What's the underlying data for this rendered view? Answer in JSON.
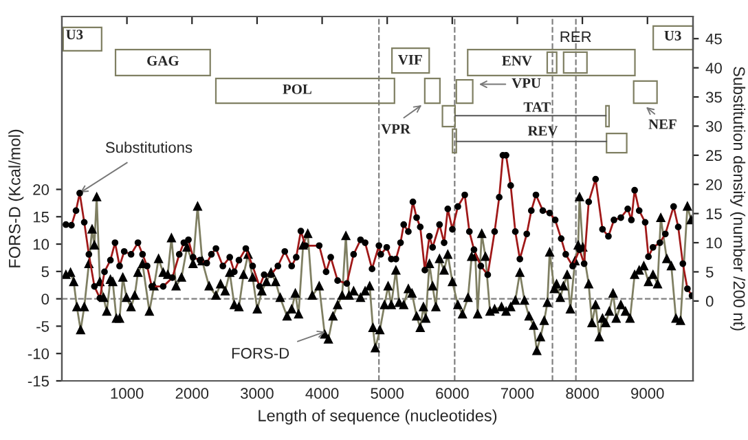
{
  "chart_data": {
    "type": "line",
    "xlabel": "Length of sequence (nucleotides)",
    "ylabel": "FORS-D (Kcal/mol)",
    "y2label": "Substitution density (number /200 nt)",
    "xlim": [
      0,
      9700
    ],
    "xticks": [
      1000,
      2000,
      3000,
      4000,
      5000,
      6000,
      7000,
      8000,
      9000
    ],
    "ylim": [
      -15,
      51.6
    ],
    "yticks": [
      -15,
      -10,
      -5,
      0,
      5,
      10,
      15,
      20
    ],
    "y2lim": [
      -13.7,
      48.8
    ],
    "y2ticks": [
      0,
      5,
      10,
      15,
      20,
      25,
      30,
      35,
      40,
      45
    ],
    "grid": false,
    "legend": false,
    "series": [
      {
        "color": "#7f7f62",
        "marker": "triangle",
        "line_style": "solid",
        "x": [
          62,
          133,
          182,
          231,
          288,
          344,
          415,
          464,
          500,
          535,
          584,
          640,
          690,
          746,
          782,
          838,
          887,
          937,
          993,
          1063,
          1120,
          1169,
          1240,
          1345,
          1416,
          1486,
          1557,
          1627,
          1684,
          1755,
          1839,
          1924,
          2016,
          2086,
          2157,
          2263,
          2368,
          2439,
          2510,
          2580,
          2650,
          2721,
          2792,
          2862,
          2932,
          3003,
          3074,
          3144,
          3214,
          3285,
          3355,
          3461,
          3532,
          3588,
          3638,
          3708,
          3779,
          3849,
          3955,
          4040,
          4096,
          4167,
          4238,
          4308,
          4365,
          4414,
          4484,
          4590,
          4661,
          4731,
          4781,
          4817,
          4887,
          4958,
          5014,
          5063,
          5134,
          5183,
          5254,
          5325,
          5381,
          5452,
          5508,
          5557,
          5593,
          5649,
          5698,
          5748,
          5804,
          5875,
          5931,
          6002,
          6086,
          6157,
          6242,
          6298,
          6355,
          6390,
          6453,
          6510,
          6580,
          6651,
          6757,
          6827,
          6898,
          6969,
          7039,
          7110,
          7180,
          7251,
          7300,
          7356,
          7413,
          7462,
          7497,
          7568,
          7603,
          7660,
          7709,
          7766,
          7815,
          7886,
          7935,
          7956,
          8006,
          8097,
          8147,
          8203,
          8259,
          8309,
          8358,
          8414,
          8471,
          8520,
          8591,
          8662,
          8732,
          8803,
          8873,
          8944,
          9015,
          9085,
          9156,
          9205,
          9297,
          9367,
          9438,
          9508,
          9614,
          9671
        ],
        "values": [
          4.4,
          4.8,
          3.1,
          -1.5,
          -5.7,
          -1.5,
          6.4,
          12.7,
          9.8,
          18.6,
          3.1,
          0.2,
          -2.3,
          3.5,
          3.1,
          -3.6,
          -3.6,
          3.9,
          0.2,
          -1.5,
          0.6,
          4.8,
          6.4,
          -2.3,
          2.3,
          7.3,
          4.8,
          4.4,
          11.1,
          2.3,
          3.9,
          9.4,
          6.4,
          16.9,
          6.9,
          2.3,
          0.6,
          2.7,
          1.4,
          4.8,
          -1.1,
          -1.5,
          4.4,
          8.1,
          3.9,
          -1.9,
          1.4,
          3.1,
          4.8,
          3.1,
          0.2,
          -3.2,
          -1.9,
          1.0,
          -2.8,
          9.8,
          11.9,
          0.6,
          2.3,
          -6.5,
          -7.4,
          -3.2,
          -1.1,
          0.6,
          11.5,
          0.6,
          1.4,
          0.2,
          1.4,
          2.3,
          -5.3,
          -9.0,
          -5.7,
          -1.1,
          2.3,
          -1.1,
          5.2,
          -0.7,
          -1.1,
          1.8,
          1.0,
          -3.2,
          -5.3,
          -1.5,
          -3.6,
          6.4,
          2.3,
          -1.5,
          7.3,
          5.2,
          8.1,
          3.1,
          -1.1,
          -2.8,
          0.2,
          7.7,
          7.7,
          -2.8,
          11.9,
          7.7,
          -2.3,
          -1.9,
          -1.5,
          -2.3,
          -1.5,
          -0.3,
          4.8,
          -0.3,
          -3.2,
          -4.9,
          -9.5,
          -7.0,
          -4.0,
          -0.7,
          8.5,
          1.8,
          2.7,
          0.2,
          2.3,
          4.4,
          -1.9,
          6.9,
          9.8,
          18.6,
          9.4,
          2.7,
          -4.4,
          -1.1,
          -7.0,
          -3.6,
          -4.4,
          -2.3,
          1.0,
          -3.6,
          -1.1,
          -2.3,
          -3.6,
          4.4,
          5.2,
          6.0,
          3.1,
          4.4,
          2.7,
          14.8,
          7.3,
          6.0,
          -3.6,
          -4.0,
          16.9,
          14.4
        ]
      },
      {
        "color": "#a01818",
        "marker": "circle",
        "line_style": "solid",
        "axis": "y2",
        "x": [
          62,
          147,
          217,
          274,
          344,
          415,
          500,
          584,
          655,
          746,
          817,
          887,
          958,
          1063,
          1169,
          1240,
          1310,
          1381,
          1557,
          1698,
          1804,
          1875,
          1945,
          2016,
          2122,
          2227,
          2298,
          2368,
          2474,
          2580,
          2650,
          2721,
          2827,
          2932,
          3038,
          3109,
          3214,
          3320,
          3426,
          3532,
          3602,
          3673,
          3743,
          3955,
          4061,
          4132,
          4238,
          4379,
          4484,
          4590,
          4661,
          4767,
          4873,
          4901,
          4993,
          5063,
          5134,
          5205,
          5254,
          5325,
          5395,
          5452,
          5508,
          5579,
          5649,
          5698,
          5804,
          5875,
          5931,
          6002,
          6086,
          6192,
          6263,
          6334,
          6439,
          6545,
          6651,
          6722,
          6778,
          6827,
          6898,
          6969,
          7039,
          7145,
          7215,
          7286,
          7392,
          7497,
          7582,
          7674,
          7744,
          7850,
          7956,
          8027,
          8097,
          8203,
          8309,
          8400,
          8485,
          8591,
          8697,
          8753,
          8803,
          8873,
          8965,
          9015,
          9085,
          9191,
          9275,
          9402,
          9473,
          9544,
          9614,
          9685
        ],
        "values": [
          13.1,
          13,
          15.5,
          18.5,
          13.5,
          8,
          2.5,
          0.5,
          5,
          7,
          10,
          6,
          8.5,
          8,
          10,
          8,
          6,
          2.5,
          2.5,
          4,
          8,
          10,
          10.5,
          7.5,
          7,
          6.5,
          8,
          9,
          6,
          7.5,
          5,
          7,
          9,
          6,
          2.5,
          4.5,
          4.5,
          6,
          8.5,
          6,
          7.5,
          12,
          9.5,
          9.5,
          5,
          7.5,
          3.5,
          3,
          8,
          10.5,
          10,
          5.5,
          9.5,
          8,
          9.2,
          7.2,
          7.2,
          10,
          13.1,
          11.9,
          17,
          14.3,
          12.7,
          5.3,
          11.1,
          9.2,
          13.1,
          10,
          15.8,
          12.3,
          16.2,
          18.2,
          11.9,
          8.8,
          6,
          4.5,
          11.9,
          17.8,
          25,
          25,
          19.8,
          11.9,
          7.2,
          11.5,
          15.5,
          18.2,
          15.5,
          15.1,
          13.9,
          10.7,
          8,
          6,
          8.8,
          6.4,
          17,
          20.9,
          12.3,
          11.1,
          13.9,
          14.3,
          15.8,
          13.9,
          19,
          15.5,
          13.5,
          7.6,
          9.2,
          10,
          11.5,
          16.2,
          12.7,
          6.4,
          2.1,
          0.9
        ]
      }
    ],
    "ref_lines": [
      {
        "axis": "x",
        "value": 4873,
        "color": "#808080",
        "line_style": "dashed"
      },
      {
        "axis": "x",
        "value": 6037,
        "color": "#808080",
        "line_style": "dashed"
      },
      {
        "axis": "x",
        "value": 7540,
        "color": "#808080",
        "line_style": "dashed"
      },
      {
        "axis": "x",
        "value": 7900,
        "color": "#808080",
        "line_style": "dashed"
      },
      {
        "axis": "y",
        "value": 0,
        "color": "#808080",
        "line_style": "dashed"
      }
    ],
    "annotations": [
      {
        "text": "Substitutions",
        "x": 280,
        "y": 19.4
      },
      {
        "text": "FORS-D",
        "x": 4048,
        "y": -6.0
      },
      "U3",
      "GAG",
      "POL",
      "VIF",
      "ENV",
      "RER",
      "U3",
      "VPU",
      "TAT",
      "REV",
      "VPR",
      "NEF"
    ]
  }
}
